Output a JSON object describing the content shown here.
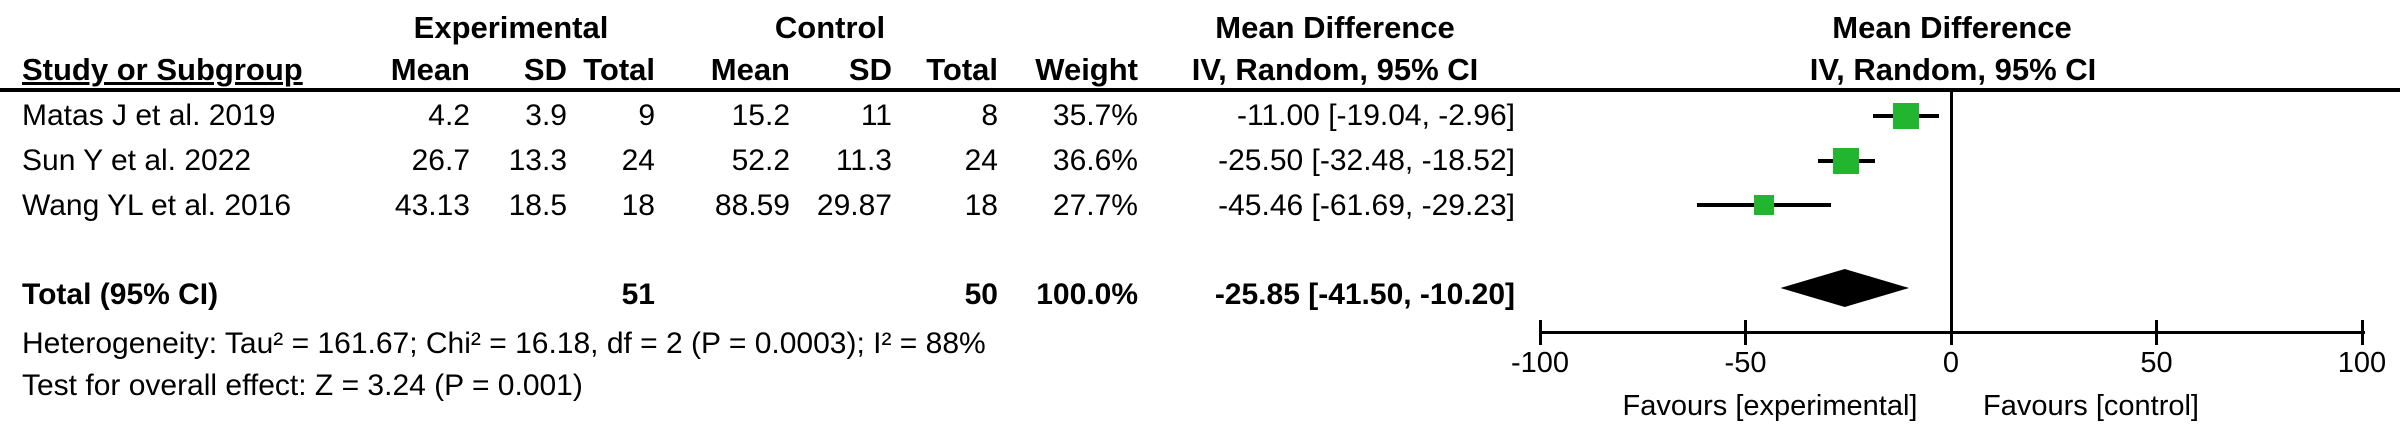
{
  "table": {
    "group_headers": {
      "experimental": "Experimental",
      "control": "Control",
      "md_left": "Mean Difference",
      "md_right": "Mean Difference"
    },
    "col_headers": {
      "study": "Study or Subgroup",
      "mean_exp": "Mean",
      "sd_exp": "SD",
      "total_exp": "Total",
      "mean_ctl": "Mean",
      "sd_ctl": "SD",
      "total_ctl": "Total",
      "weight": "Weight",
      "ci_left": "IV, Random, 95% CI",
      "ci_right": "IV, Random, 95% CI"
    },
    "rows": [
      {
        "study": "Matas J et al. 2019",
        "mean_exp": "4.2",
        "sd_exp": "3.9",
        "total_exp": "9",
        "mean_ctl": "15.2",
        "sd_ctl": "11",
        "total_ctl": "8",
        "weight": "35.7%",
        "ci": "-11.00 [-19.04, -2.96]"
      },
      {
        "study": "Sun Y et al. 2022",
        "mean_exp": "26.7",
        "sd_exp": "13.3",
        "total_exp": "24",
        "mean_ctl": "52.2",
        "sd_ctl": "11.3",
        "total_ctl": "24",
        "weight": "36.6%",
        "ci": "-25.50 [-32.48, -18.52]"
      },
      {
        "study": "Wang YL et al. 2016",
        "mean_exp": "43.13",
        "sd_exp": "18.5",
        "total_exp": "18",
        "mean_ctl": "88.59",
        "sd_ctl": "29.87",
        "total_ctl": "18",
        "weight": "27.7%",
        "ci": "-45.46 [-61.69, -29.23]"
      }
    ],
    "total": {
      "label": "Total (95% CI)",
      "total_exp": "51",
      "total_ctl": "50",
      "weight": "100.0%",
      "ci": "-25.85 [-41.50, -10.20]"
    },
    "heterogeneity": "Heterogeneity: Tau² = 161.67; Chi² = 16.18, df = 2 (P = 0.0003); I² = 88%",
    "overall_effect": "Test for overall effect: Z = 3.24 (P = 0.001)"
  },
  "chart_data": {
    "type": "forest",
    "effect_measure": "Mean Difference, IV, Random, 95% CI",
    "studies": [
      {
        "name": "Matas J et al. 2019",
        "estimate": -11.0,
        "ci_low": -19.04,
        "ci_high": -2.96,
        "weight_pct": 35.7
      },
      {
        "name": "Sun Y et al. 2022",
        "estimate": -25.5,
        "ci_low": -32.48,
        "ci_high": -18.52,
        "weight_pct": 36.6
      },
      {
        "name": "Wang YL et al. 2016",
        "estimate": -45.46,
        "ci_low": -61.69,
        "ci_high": -29.23,
        "weight_pct": 27.7
      }
    ],
    "total": {
      "estimate": -25.85,
      "ci_low": -41.5,
      "ci_high": -10.2
    },
    "axis": {
      "min": -100,
      "max": 100,
      "ticks": [
        -100,
        -50,
        0,
        50,
        100
      ]
    },
    "favours_left": "Favours [experimental]",
    "favours_right": "Favours [control]",
    "marker_color": "#21b530",
    "line_color": "#000000"
  }
}
